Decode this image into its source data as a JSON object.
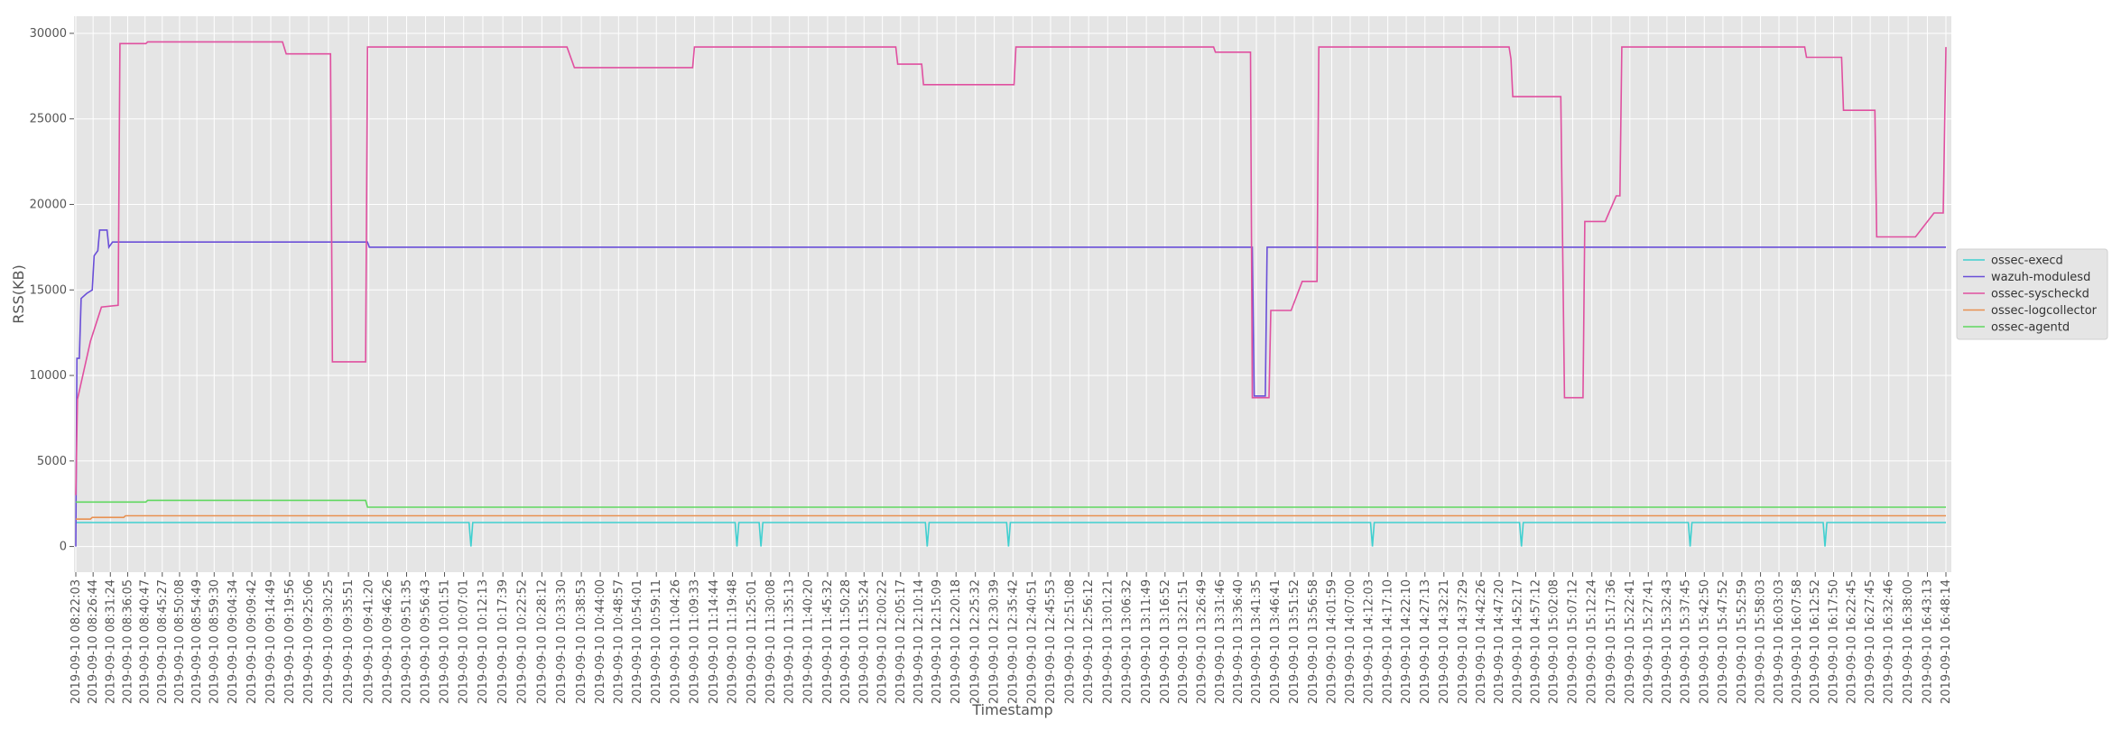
{
  "chart_data": {
    "type": "line",
    "xlabel": "Timestamp",
    "ylabel": "RSS(KB)",
    "ylim": [
      -1500,
      31000
    ],
    "y_ticks": [
      0,
      5000,
      10000,
      15000,
      20000,
      25000,
      30000
    ],
    "grid": true,
    "legend_position": "right",
    "x_tick_labels": [
      "2019-09-10 08:22:03",
      "2019-09-10 08:26:44",
      "2019-09-10 08:31:24",
      "2019-09-10 08:36:05",
      "2019-09-10 08:40:47",
      "2019-09-10 08:45:27",
      "2019-09-10 08:50:08",
      "2019-09-10 08:54:49",
      "2019-09-10 08:59:30",
      "2019-09-10 09:04:34",
      "2019-09-10 09:09:42",
      "2019-09-10 09:14:49",
      "2019-09-10 09:19:56",
      "2019-09-10 09:25:06",
      "2019-09-10 09:30:25",
      "2019-09-10 09:35:51",
      "2019-09-10 09:41:20",
      "2019-09-10 09:46:26",
      "2019-09-10 09:51:35",
      "2019-09-10 09:56:43",
      "2019-09-10 10:01:51",
      "2019-09-10 10:07:01",
      "2019-09-10 10:12:13",
      "2019-09-10 10:17:39",
      "2019-09-10 10:22:52",
      "2019-09-10 10:28:12",
      "2019-09-10 10:33:30",
      "2019-09-10 10:38:53",
      "2019-09-10 10:44:00",
      "2019-09-10 10:48:57",
      "2019-09-10 10:54:01",
      "2019-09-10 10:59:11",
      "2019-09-10 11:04:26",
      "2019-09-10 11:09:33",
      "2019-09-10 11:14:44",
      "2019-09-10 11:19:48",
      "2019-09-10 11:25:01",
      "2019-09-10 11:30:08",
      "2019-09-10 11:35:13",
      "2019-09-10 11:40:20",
      "2019-09-10 11:45:32",
      "2019-09-10 11:50:28",
      "2019-09-10 11:55:24",
      "2019-09-10 12:00:22",
      "2019-09-10 12:05:17",
      "2019-09-10 12:10:14",
      "2019-09-10 12:15:09",
      "2019-09-10 12:20:18",
      "2019-09-10 12:25:32",
      "2019-09-10 12:30:39",
      "2019-09-10 12:35:42",
      "2019-09-10 12:40:51",
      "2019-09-10 12:45:53",
      "2019-09-10 12:51:08",
      "2019-09-10 12:56:12",
      "2019-09-10 13:01:21",
      "2019-09-10 13:06:32",
      "2019-09-10 13:11:49",
      "2019-09-10 13:16:52",
      "2019-09-10 13:21:51",
      "2019-09-10 13:26:49",
      "2019-09-10 13:31:46",
      "2019-09-10 13:36:40",
      "2019-09-10 13:41:35",
      "2019-09-10 13:46:41",
      "2019-09-10 13:51:52",
      "2019-09-10 13:56:58",
      "2019-09-10 14:01:59",
      "2019-09-10 14:07:00",
      "2019-09-10 14:12:03",
      "2019-09-10 14:17:10",
      "2019-09-10 14:22:10",
      "2019-09-10 14:27:13",
      "2019-09-10 14:32:21",
      "2019-09-10 14:37:29",
      "2019-09-10 14:42:26",
      "2019-09-10 14:47:20",
      "2019-09-10 14:52:17",
      "2019-09-10 14:57:12",
      "2019-09-10 15:02:08",
      "2019-09-10 15:07:12",
      "2019-09-10 15:12:24",
      "2019-09-10 15:17:36",
      "2019-09-10 15:22:41",
      "2019-09-10 15:27:41",
      "2019-09-10 15:32:43",
      "2019-09-10 15:37:45",
      "2019-09-10 15:42:50",
      "2019-09-10 15:47:52",
      "2019-09-10 15:52:59",
      "2019-09-10 15:58:03",
      "2019-09-10 16:03:03",
      "2019-09-10 16:07:58",
      "2019-09-10 16:12:52",
      "2019-09-10 16:17:50",
      "2019-09-10 16:22:45",
      "2019-09-10 16:27:45",
      "2019-09-10 16:32:46",
      "2019-09-10 16:38:00",
      "2019-09-10 16:43:13",
      "2019-09-10 16:48:14"
    ],
    "series": [
      {
        "name": "ossec-execd",
        "color": "#40d0d0",
        "points": [
          {
            "x": "08:22:03",
            "y": 1400
          },
          {
            "x": "09:41:20",
            "y": 1400
          },
          {
            "x": "10:08:30",
            "y": 1400
          },
          {
            "x": "10:09:00",
            "y": 0
          },
          {
            "x": "10:09:30",
            "y": 1400
          },
          {
            "x": "11:20:30",
            "y": 1400
          },
          {
            "x": "11:21:00",
            "y": 0
          },
          {
            "x": "11:21:30",
            "y": 1400
          },
          {
            "x": "11:27:00",
            "y": 1400
          },
          {
            "x": "11:27:30",
            "y": 0
          },
          {
            "x": "11:28:00",
            "y": 1400
          },
          {
            "x": "12:12:00",
            "y": 1400
          },
          {
            "x": "12:12:30",
            "y": 0
          },
          {
            "x": "12:13:00",
            "y": 1400
          },
          {
            "x": "12:34:00",
            "y": 1400
          },
          {
            "x": "12:34:30",
            "y": 0
          },
          {
            "x": "12:35:00",
            "y": 1400
          },
          {
            "x": "14:12:30",
            "y": 1400
          },
          {
            "x": "14:13:00",
            "y": 0
          },
          {
            "x": "14:13:30",
            "y": 1400
          },
          {
            "x": "14:52:50",
            "y": 1400
          },
          {
            "x": "14:53:20",
            "y": 0
          },
          {
            "x": "14:53:50",
            "y": 1400
          },
          {
            "x": "15:38:30",
            "y": 1400
          },
          {
            "x": "15:39:00",
            "y": 0
          },
          {
            "x": "15:39:30",
            "y": 1400
          },
          {
            "x": "16:15:00",
            "y": 1400
          },
          {
            "x": "16:15:30",
            "y": 0
          },
          {
            "x": "16:16:00",
            "y": 1400
          },
          {
            "x": "16:48:14",
            "y": 1400
          }
        ]
      },
      {
        "name": "wazuh-modulesd",
        "color": "#6a4fd8",
        "points": [
          {
            "x": "08:22:03",
            "y": 0
          },
          {
            "x": "08:22:20",
            "y": 11000
          },
          {
            "x": "08:23:00",
            "y": 11000
          },
          {
            "x": "08:23:30",
            "y": 14500
          },
          {
            "x": "08:25:00",
            "y": 14800
          },
          {
            "x": "08:26:30",
            "y": 15000
          },
          {
            "x": "08:27:00",
            "y": 17000
          },
          {
            "x": "08:28:00",
            "y": 17300
          },
          {
            "x": "08:28:30",
            "y": 18500
          },
          {
            "x": "08:30:30",
            "y": 18500
          },
          {
            "x": "08:31:00",
            "y": 17500
          },
          {
            "x": "08:32:00",
            "y": 17800
          },
          {
            "x": "09:41:00",
            "y": 17800
          },
          {
            "x": "09:41:30",
            "y": 17500
          },
          {
            "x": "13:40:30",
            "y": 17500
          },
          {
            "x": "13:41:00",
            "y": 8800
          },
          {
            "x": "13:44:00",
            "y": 8800
          },
          {
            "x": "13:44:30",
            "y": 17500
          },
          {
            "x": "16:48:14",
            "y": 17500
          }
        ]
      },
      {
        "name": "ossec-syscheckd",
        "color": "#e050a0",
        "points": [
          {
            "x": "08:22:03",
            "y": 3000
          },
          {
            "x": "08:22:30",
            "y": 8600
          },
          {
            "x": "08:26:00",
            "y": 12000
          },
          {
            "x": "08:29:00",
            "y": 14000
          },
          {
            "x": "08:33:30",
            "y": 14100
          },
          {
            "x": "08:34:00",
            "y": 29400
          },
          {
            "x": "08:41:00",
            "y": 29400
          },
          {
            "x": "08:41:30",
            "y": 29500
          },
          {
            "x": "09:04:00",
            "y": 29500
          },
          {
            "x": "09:06:00",
            "y": 29500
          },
          {
            "x": "09:18:00",
            "y": 29500
          },
          {
            "x": "09:19:00",
            "y": 28800
          },
          {
            "x": "09:31:00",
            "y": 28800
          },
          {
            "x": "09:31:30",
            "y": 10800
          },
          {
            "x": "09:40:30",
            "y": 10800
          },
          {
            "x": "09:41:00",
            "y": 29200
          },
          {
            "x": "10:35:00",
            "y": 29200
          },
          {
            "x": "10:37:00",
            "y": 28000
          },
          {
            "x": "11:09:00",
            "y": 28000
          },
          {
            "x": "11:09:30",
            "y": 29200
          },
          {
            "x": "12:04:00",
            "y": 29200
          },
          {
            "x": "12:04:30",
            "y": 28200
          },
          {
            "x": "12:11:00",
            "y": 28200
          },
          {
            "x": "12:11:30",
            "y": 27000
          },
          {
            "x": "12:36:00",
            "y": 27000
          },
          {
            "x": "12:36:30",
            "y": 29200
          },
          {
            "x": "13:30:00",
            "y": 29200
          },
          {
            "x": "13:30:30",
            "y": 28900
          },
          {
            "x": "13:40:00",
            "y": 28900
          },
          {
            "x": "13:40:30",
            "y": 8700
          },
          {
            "x": "13:45:00",
            "y": 8700
          },
          {
            "x": "13:45:30",
            "y": 13800
          },
          {
            "x": "13:51:00",
            "y": 13800
          },
          {
            "x": "13:54:00",
            "y": 15500
          },
          {
            "x": "13:58:00",
            "y": 15500
          },
          {
            "x": "13:58:30",
            "y": 29200
          },
          {
            "x": "14:50:00",
            "y": 29200
          },
          {
            "x": "14:50:30",
            "y": 28500
          },
          {
            "x": "14:51:00",
            "y": 26300
          },
          {
            "x": "15:04:00",
            "y": 26300
          },
          {
            "x": "15:05:00",
            "y": 8700
          },
          {
            "x": "15:10:00",
            "y": 8700
          },
          {
            "x": "15:10:30",
            "y": 19000
          },
          {
            "x": "15:16:00",
            "y": 19000
          },
          {
            "x": "15:19:00",
            "y": 20500
          },
          {
            "x": "15:20:00",
            "y": 20500
          },
          {
            "x": "15:20:30",
            "y": 29200
          },
          {
            "x": "16:10:00",
            "y": 29200
          },
          {
            "x": "16:10:30",
            "y": 28600
          },
          {
            "x": "16:20:00",
            "y": 28600
          },
          {
            "x": "16:20:30",
            "y": 25500
          },
          {
            "x": "16:29:00",
            "y": 25500
          },
          {
            "x": "16:29:30",
            "y": 18100
          },
          {
            "x": "16:40:00",
            "y": 18100
          },
          {
            "x": "16:45:00",
            "y": 19500
          },
          {
            "x": "16:47:30",
            "y": 19500
          },
          {
            "x": "16:48:14",
            "y": 29200
          }
        ]
      },
      {
        "name": "ossec-logcollector",
        "color": "#e89050",
        "points": [
          {
            "x": "08:22:03",
            "y": 1600
          },
          {
            "x": "08:26:00",
            "y": 1600
          },
          {
            "x": "08:26:30",
            "y": 1700
          },
          {
            "x": "08:35:00",
            "y": 1700
          },
          {
            "x": "08:35:30",
            "y": 1800
          },
          {
            "x": "09:41:00",
            "y": 1800
          },
          {
            "x": "09:41:30",
            "y": 1800
          },
          {
            "x": "16:48:14",
            "y": 1800
          }
        ]
      },
      {
        "name": "ossec-agentd",
        "color": "#60d860",
        "points": [
          {
            "x": "08:22:03",
            "y": 2600
          },
          {
            "x": "08:41:00",
            "y": 2600
          },
          {
            "x": "08:41:30",
            "y": 2700
          },
          {
            "x": "09:40:30",
            "y": 2700
          },
          {
            "x": "09:41:00",
            "y": 2300
          },
          {
            "x": "16:48:14",
            "y": 2300
          }
        ]
      }
    ]
  }
}
